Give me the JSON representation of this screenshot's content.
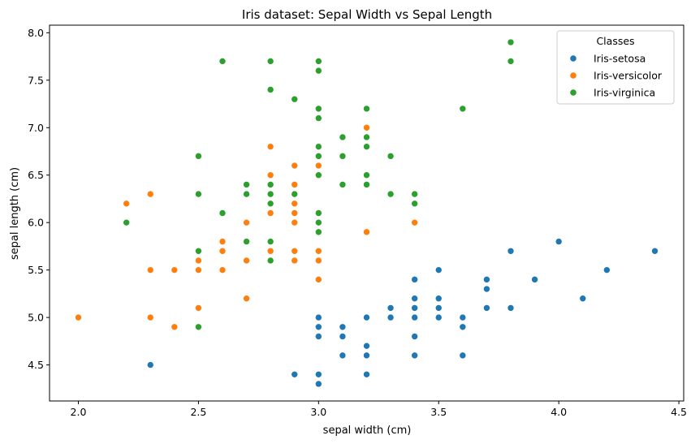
{
  "chart_data": {
    "type": "scatter",
    "title": "Iris dataset: Sepal Width vs Sepal Length",
    "xlabel": "sepal width (cm)",
    "ylabel": "sepal length (cm)",
    "xlim": [
      1.88,
      4.52
    ],
    "ylim": [
      4.12,
      8.08
    ],
    "xticks": [
      "2.0",
      "2.5",
      "3.0",
      "3.5",
      "4.0",
      "4.5"
    ],
    "yticks": [
      "4.5",
      "5.0",
      "5.5",
      "6.0",
      "6.5",
      "7.0",
      "7.5",
      "8.0"
    ],
    "grid": false,
    "legend": {
      "title": "Classes",
      "position": "top-right"
    },
    "series": [
      {
        "name": "Iris-setosa",
        "color": "#1f77b4",
        "points": [
          [
            3.5,
            5.1
          ],
          [
            3.0,
            4.9
          ],
          [
            3.2,
            4.7
          ],
          [
            3.1,
            4.6
          ],
          [
            3.6,
            5.0
          ],
          [
            3.9,
            5.4
          ],
          [
            3.4,
            4.6
          ],
          [
            3.4,
            5.0
          ],
          [
            2.9,
            4.4
          ],
          [
            3.1,
            4.9
          ],
          [
            3.7,
            5.4
          ],
          [
            3.4,
            4.8
          ],
          [
            3.0,
            4.8
          ],
          [
            3.0,
            4.3
          ],
          [
            4.0,
            5.8
          ],
          [
            4.4,
            5.7
          ],
          [
            3.9,
            5.4
          ],
          [
            3.5,
            5.1
          ],
          [
            3.8,
            5.7
          ],
          [
            3.8,
            5.1
          ],
          [
            3.4,
            5.4
          ],
          [
            3.7,
            5.1
          ],
          [
            3.6,
            4.6
          ],
          [
            3.3,
            5.1
          ],
          [
            3.4,
            4.8
          ],
          [
            3.0,
            5.0
          ],
          [
            3.4,
            5.0
          ],
          [
            3.5,
            5.2
          ],
          [
            3.4,
            5.2
          ],
          [
            3.2,
            4.7
          ],
          [
            3.1,
            4.8
          ],
          [
            3.4,
            5.4
          ],
          [
            4.1,
            5.2
          ],
          [
            4.2,
            5.5
          ],
          [
            3.1,
            4.9
          ],
          [
            3.2,
            5.0
          ],
          [
            3.5,
            5.5
          ],
          [
            3.6,
            4.9
          ],
          [
            3.0,
            4.4
          ],
          [
            3.4,
            5.1
          ],
          [
            3.5,
            5.0
          ],
          [
            2.3,
            4.5
          ],
          [
            3.2,
            4.4
          ],
          [
            3.5,
            5.0
          ],
          [
            3.8,
            5.1
          ],
          [
            3.0,
            4.8
          ],
          [
            3.8,
            5.1
          ],
          [
            3.2,
            4.6
          ],
          [
            3.7,
            5.3
          ],
          [
            3.3,
            5.0
          ]
        ]
      },
      {
        "name": "Iris-versicolor",
        "color": "#ff7f0e",
        "points": [
          [
            3.2,
            7.0
          ],
          [
            3.2,
            6.4
          ],
          [
            3.1,
            6.9
          ],
          [
            2.3,
            5.5
          ],
          [
            2.8,
            6.5
          ],
          [
            2.8,
            5.7
          ],
          [
            3.3,
            6.3
          ],
          [
            2.4,
            4.9
          ],
          [
            2.9,
            6.6
          ],
          [
            2.7,
            5.2
          ],
          [
            2.0,
            5.0
          ],
          [
            3.0,
            5.9
          ],
          [
            2.2,
            6.0
          ],
          [
            2.9,
            6.1
          ],
          [
            2.9,
            5.6
          ],
          [
            3.1,
            6.7
          ],
          [
            3.0,
            5.6
          ],
          [
            2.7,
            5.8
          ],
          [
            2.2,
            6.2
          ],
          [
            2.5,
            5.6
          ],
          [
            3.2,
            5.9
          ],
          [
            2.8,
            6.1
          ],
          [
            2.5,
            6.3
          ],
          [
            2.8,
            6.1
          ],
          [
            2.9,
            6.4
          ],
          [
            3.0,
            6.6
          ],
          [
            2.8,
            6.8
          ],
          [
            3.0,
            6.7
          ],
          [
            2.9,
            6.0
          ],
          [
            2.6,
            5.7
          ],
          [
            2.4,
            5.5
          ],
          [
            2.4,
            5.5
          ],
          [
            2.7,
            5.8
          ],
          [
            2.7,
            6.0
          ],
          [
            3.0,
            5.4
          ],
          [
            3.4,
            6.0
          ],
          [
            3.1,
            6.7
          ],
          [
            2.3,
            6.3
          ],
          [
            3.0,
            5.6
          ],
          [
            2.5,
            5.5
          ],
          [
            2.6,
            5.5
          ],
          [
            3.0,
            6.1
          ],
          [
            2.6,
            5.8
          ],
          [
            2.3,
            5.0
          ],
          [
            2.7,
            5.6
          ],
          [
            3.0,
            5.7
          ],
          [
            2.9,
            5.7
          ],
          [
            2.9,
            6.2
          ],
          [
            2.5,
            5.1
          ],
          [
            2.8,
            5.7
          ]
        ]
      },
      {
        "name": "Iris-virginica",
        "color": "#2ca02c",
        "points": [
          [
            3.3,
            6.3
          ],
          [
            2.7,
            5.8
          ],
          [
            3.0,
            7.1
          ],
          [
            2.9,
            6.3
          ],
          [
            3.0,
            6.5
          ],
          [
            3.0,
            7.6
          ],
          [
            2.5,
            4.9
          ],
          [
            2.9,
            7.3
          ],
          [
            2.5,
            6.7
          ],
          [
            3.6,
            7.2
          ],
          [
            3.2,
            6.5
          ],
          [
            2.7,
            6.4
          ],
          [
            3.0,
            6.8
          ],
          [
            2.5,
            5.7
          ],
          [
            2.8,
            5.8
          ],
          [
            3.2,
            6.4
          ],
          [
            3.0,
            6.5
          ],
          [
            3.8,
            7.7
          ],
          [
            2.6,
            7.7
          ],
          [
            2.2,
            6.0
          ],
          [
            3.2,
            6.9
          ],
          [
            2.8,
            5.6
          ],
          [
            2.8,
            7.7
          ],
          [
            2.7,
            6.3
          ],
          [
            3.3,
            6.7
          ],
          [
            3.2,
            7.2
          ],
          [
            2.8,
            6.2
          ],
          [
            3.0,
            6.1
          ],
          [
            2.8,
            6.4
          ],
          [
            3.0,
            7.2
          ],
          [
            2.8,
            7.4
          ],
          [
            3.8,
            7.9
          ],
          [
            2.8,
            6.4
          ],
          [
            2.8,
            6.3
          ],
          [
            2.6,
            6.1
          ],
          [
            3.0,
            7.7
          ],
          [
            3.4,
            6.3
          ],
          [
            3.1,
            6.4
          ],
          [
            3.0,
            6.0
          ],
          [
            3.1,
            6.9
          ],
          [
            3.1,
            6.7
          ],
          [
            3.1,
            6.9
          ],
          [
            2.7,
            5.8
          ],
          [
            3.2,
            6.8
          ],
          [
            3.3,
            6.7
          ],
          [
            3.0,
            6.7
          ],
          [
            2.5,
            6.3
          ],
          [
            3.0,
            6.5
          ],
          [
            3.4,
            6.2
          ],
          [
            3.0,
            5.9
          ]
        ]
      }
    ]
  }
}
